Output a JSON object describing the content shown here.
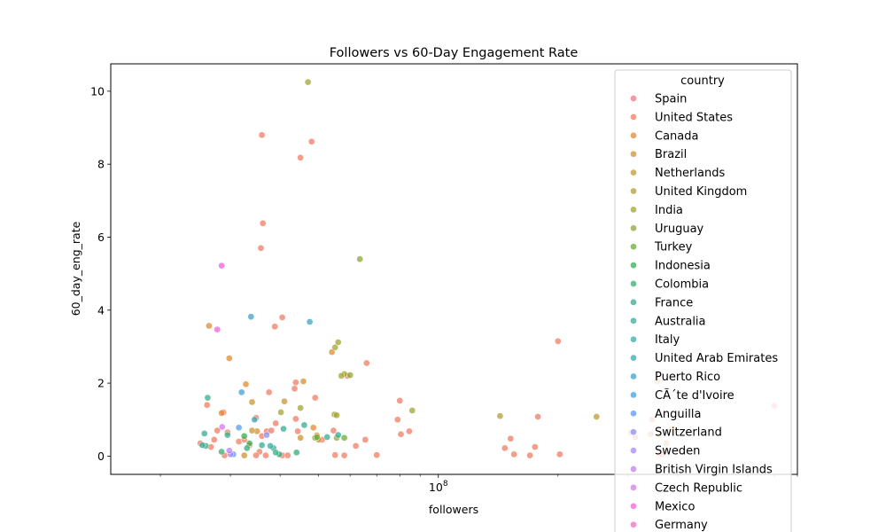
{
  "chart_data": {
    "type": "scatter",
    "title": "Followers vs 60-Day Engagement Rate",
    "xlabel": "followers",
    "ylabel": "60_day_eng_rate",
    "xscale": "log",
    "xlim": [
      15000000,
      800000000
    ],
    "ylim": [
      -0.5,
      10.75
    ],
    "x_major_tick": {
      "value": 100000000,
      "label": "10^8"
    },
    "y_ticks": [
      0,
      2,
      4,
      6,
      8,
      10
    ],
    "grid": false,
    "legend": {
      "title": "country",
      "placement": "upper right"
    },
    "series": [
      {
        "name": "Spain",
        "color": "#f77189",
        "points": [
          [
            700000000,
            1.38
          ]
        ]
      },
      {
        "name": "United States",
        "color": "#f27c64",
        "points": [
          [
            36000000,
            8.8
          ],
          [
            48000000,
            8.62
          ],
          [
            45000000,
            8.18
          ],
          [
            36200000,
            6.38
          ],
          [
            35800000,
            5.7
          ],
          [
            40500000,
            3.8
          ],
          [
            38800000,
            3.55
          ],
          [
            37500000,
            1.75
          ],
          [
            43800000,
            2.02
          ],
          [
            43500000,
            1.85
          ],
          [
            49000000,
            1.6
          ],
          [
            59000000,
            2.2
          ],
          [
            66000000,
            2.55
          ],
          [
            80000000,
            1.52
          ],
          [
            79000000,
            1.0
          ],
          [
            26200000,
            1.4
          ],
          [
            28800000,
            1.2
          ],
          [
            27800000,
            0.7
          ],
          [
            29500000,
            0.65
          ],
          [
            27300000,
            0.45
          ],
          [
            26800000,
            0.25
          ],
          [
            31500000,
            0.4
          ],
          [
            32500000,
            0.45
          ],
          [
            33500000,
            0.3
          ],
          [
            34800000,
            1.05
          ],
          [
            37000000,
            0.68
          ],
          [
            36000000,
            0.55
          ],
          [
            35500000,
            0.12
          ],
          [
            36800000,
            0.02
          ],
          [
            34800000,
            0.02
          ],
          [
            39000000,
            0.9
          ],
          [
            40500000,
            0.02
          ],
          [
            41800000,
            0.02
          ],
          [
            43800000,
            1.02
          ],
          [
            38000000,
            0.7
          ],
          [
            44300000,
            0.68
          ],
          [
            51000000,
            0.45
          ],
          [
            54500000,
            0.7
          ],
          [
            55000000,
            0.03
          ],
          [
            58000000,
            0.02
          ],
          [
            62000000,
            0.28
          ],
          [
            65500000,
            0.45
          ],
          [
            70000000,
            0.03
          ],
          [
            80500000,
            0.6
          ],
          [
            84500000,
            0.68
          ],
          [
            147000000,
            0.22
          ],
          [
            152000000,
            0.48
          ],
          [
            155000000,
            0.05
          ],
          [
            170000000,
            0.02
          ],
          [
            175000000,
            0.25
          ],
          [
            178000000,
            1.08
          ],
          [
            200000000,
            3.15
          ],
          [
            202000000,
            0.05
          ],
          [
            305000000,
            0.65
          ],
          [
            313000000,
            0.52
          ],
          [
            342000000,
            0.6
          ],
          [
            345000000,
            1.0
          ],
          [
            360000000,
            0.06
          ],
          [
            365000000,
            0.05
          ],
          [
            29000000,
            0.02
          ],
          [
            25200000,
            0.35
          ]
        ]
      },
      {
        "name": "Canada",
        "color": "#e18b32",
        "points": [
          [
            26500000,
            3.57
          ],
          [
            29800000,
            2.68
          ],
          [
            32800000,
            1.97
          ],
          [
            28500000,
            1.18
          ],
          [
            54000000,
            2.85
          ],
          [
            48500000,
            0.78
          ],
          [
            49500000,
            0.57
          ]
        ]
      },
      {
        "name": "Brazil",
        "color": "#cc9431",
        "points": [
          [
            34000000,
            1.48
          ],
          [
            41000000,
            1.5
          ],
          [
            35000000,
            0.68
          ],
          [
            34000000,
            0.7
          ],
          [
            32500000,
            0.02
          ],
          [
            45000000,
            0.5
          ],
          [
            50000000,
            0.45
          ],
          [
            45800000,
            2.05
          ],
          [
            355000000,
            2.05
          ],
          [
            375000000,
            0.35
          ],
          [
            385000000,
            0.75
          ]
        ]
      },
      {
        "name": "Netherlands",
        "color": "#c09a31",
        "points": [
          [
            250000000,
            1.08
          ]
        ]
      },
      {
        "name": "United Kingdom",
        "color": "#b49e31",
        "points": [
          [
            143000000,
            1.1
          ],
          [
            360000000,
            0.58
          ]
        ]
      },
      {
        "name": "India",
        "color": "#a3a431",
        "points": [
          [
            47000000,
            10.25
          ],
          [
            45000000,
            1.32
          ],
          [
            40200000,
            1.2
          ],
          [
            54800000,
            1.14
          ],
          [
            55500000,
            1.12
          ],
          [
            55000000,
            2.98
          ],
          [
            56000000,
            3.12
          ],
          [
            58000000,
            2.25
          ],
          [
            57000000,
            2.2
          ],
          [
            86000000,
            1.25
          ]
        ]
      },
      {
        "name": "Uruguay",
        "color": "#8ea832",
        "points": [
          [
            63500000,
            5.4
          ],
          [
            60000000,
            2.22
          ],
          [
            55500000,
            0.5
          ],
          [
            49000000,
            0.5
          ]
        ]
      },
      {
        "name": "Turkey",
        "color": "#6aae32",
        "points": [
          [
            58000000,
            0.5
          ],
          [
            49500000,
            0.52
          ]
        ]
      },
      {
        "name": "Indonesia",
        "color": "#33b04f",
        "points": [
          [
            33500000,
            0.35
          ],
          [
            32500000,
            0.55
          ]
        ]
      },
      {
        "name": "Colombia",
        "color": "#35ae76",
        "points": [
          [
            26000000,
            0.28
          ],
          [
            33000000,
            0.22
          ],
          [
            44000000,
            0.1
          ],
          [
            39800000,
            0.05
          ],
          [
            28500000,
            0.12
          ]
        ]
      },
      {
        "name": "France",
        "color": "#36ad8c",
        "points": [
          [
            26300000,
            1.6
          ],
          [
            29500000,
            0.58
          ],
          [
            25800000,
            0.62
          ],
          [
            36000000,
            0.3
          ],
          [
            38500000,
            0.22
          ],
          [
            40800000,
            0.75
          ],
          [
            52500000,
            0.52
          ],
          [
            56000000,
            0.58
          ],
          [
            46000000,
            0.85
          ],
          [
            39000000,
            0.1
          ]
        ]
      },
      {
        "name": "Australia",
        "color": "#37ab9c",
        "points": [
          [
            25500000,
            0.3
          ]
        ]
      },
      {
        "name": "Italy",
        "color": "#38a9aa",
        "points": [
          [
            37800000,
            0.28
          ]
        ]
      },
      {
        "name": "United Arab Emirates",
        "color": "#39a7b8",
        "points": [
          [
            47500000,
            3.68
          ],
          [
            34500000,
            1.0
          ]
        ]
      },
      {
        "name": "Puerto Rico",
        "color": "#3ba5c8",
        "points": [
          [
            33800000,
            3.82
          ]
        ]
      },
      {
        "name": "CÃ´te d'Ivoire",
        "color": "#3fa2dc",
        "points": [
          [
            32000000,
            1.75
          ]
        ]
      },
      {
        "name": "Anguilla",
        "color": "#5b9af2",
        "points": [
          [
            31500000,
            0.78
          ],
          [
            30500000,
            0.05
          ]
        ]
      },
      {
        "name": "Switzerland",
        "color": "#8a8ff4",
        "points": [
          [
            37000000,
            0.58
          ]
        ]
      },
      {
        "name": "Sweden",
        "color": "#a68af4",
        "points": [
          [
            30000000,
            0.05
          ]
        ]
      },
      {
        "name": "British Virgin Islands",
        "color": "#c07ff4",
        "points": [
          [
            29800000,
            0.15
          ]
        ]
      },
      {
        "name": "Czech Republic",
        "color": "#d876f2",
        "points": [
          [
            28600000,
            0.8
          ]
        ]
      },
      {
        "name": "Mexico",
        "color": "#f061dd",
        "points": [
          [
            27800000,
            3.47
          ],
          [
            28500000,
            5.22
          ]
        ]
      },
      {
        "name": "Germany",
        "color": "#f56cc2",
        "points": []
      }
    ]
  }
}
